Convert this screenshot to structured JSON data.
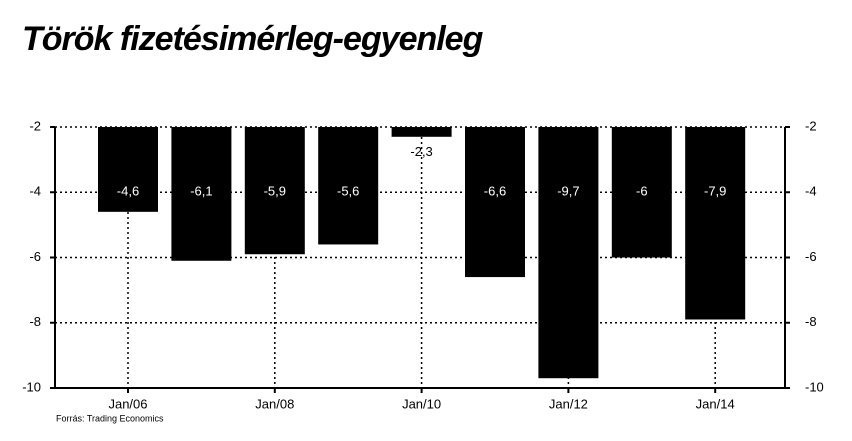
{
  "chart_data": {
    "type": "bar",
    "title": "Török fizetésimérleg-egyenleg",
    "source": "Forrás: Trading Economics",
    "categories": [
      "Jan/06",
      null,
      "Jan/08",
      null,
      "Jan/10",
      null,
      "Jan/12",
      null,
      "Jan/14"
    ],
    "values": [
      -4.6,
      -6.1,
      -5.9,
      -5.6,
      -2.3,
      -6.6,
      -9.7,
      -6,
      -7.9
    ],
    "value_labels": [
      "-4,6",
      "-6,1",
      "-5,9",
      "-5,6",
      "-2,3",
      "-6,6",
      "-9,7",
      "-6",
      "-7,9"
    ],
    "color": "#000000",
    "ylim": [
      -10,
      -2
    ],
    "yticks": [
      -2,
      -4,
      -6,
      -8,
      -10
    ],
    "y2lim": [
      -10,
      -2
    ],
    "y2ticks": [
      -2,
      -4,
      -6,
      -8,
      -10
    ],
    "grid": true
  }
}
